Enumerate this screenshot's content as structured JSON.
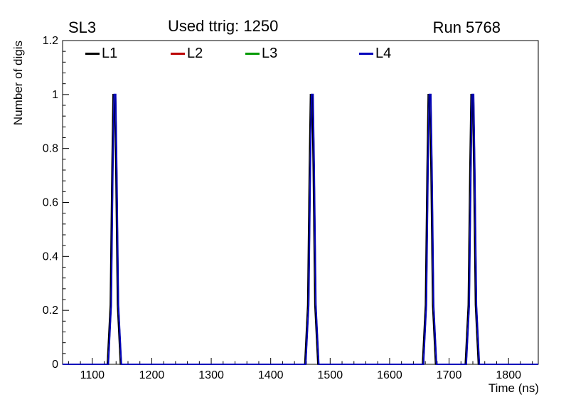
{
  "chart_data": {
    "type": "line",
    "title": "Used ttrig: 1250",
    "corner_labels": {
      "top_left": "SL3",
      "top_right": "Run 5768"
    },
    "xlabel": "Time (ns)",
    "ylabel": "Number of digis",
    "xlim": [
      1050,
      1850
    ],
    "ylim": [
      0,
      1.2
    ],
    "xticks": [
      1100,
      1200,
      1300,
      1400,
      1500,
      1600,
      1700,
      1800
    ],
    "yticks": [
      0,
      0.2,
      0.4,
      0.6,
      0.8,
      1,
      1.2
    ],
    "ytick_labels": [
      "0",
      "0.2",
      "0.4",
      "0.6",
      "0.8",
      "1",
      "1.2"
    ],
    "x_minor_step": 20,
    "y_minor_step": 0.04,
    "grid": false,
    "frame_color": "#000000",
    "legend": {
      "position": "top-inside",
      "entries": [
        {
          "label": "L1",
          "color": "#000000"
        },
        {
          "label": "L2",
          "color": "#bb0000"
        },
        {
          "label": "L3",
          "color": "#009900"
        },
        {
          "label": "L4",
          "color": "#0000bb"
        }
      ]
    },
    "series": [
      {
        "name": "L1",
        "color": "#000000",
        "baseline": 0,
        "line_width": 1.5,
        "peaks": [
          {
            "center": 1136,
            "half_width": 11,
            "height": 1
          },
          {
            "center": 1468,
            "half_width": 11,
            "height": 1
          },
          {
            "center": 1666,
            "half_width": 11,
            "height": 1
          },
          {
            "center": 1738,
            "half_width": 11,
            "height": 1
          }
        ]
      },
      {
        "name": "L2",
        "color": "#bb0000",
        "baseline": 0,
        "line_width": 1.5,
        "peaks": [
          {
            "center": 1138,
            "half_width": 11,
            "height": 1
          },
          {
            "center": 1470,
            "half_width": 11,
            "height": 1
          },
          {
            "center": 1668,
            "half_width": 11,
            "height": 1
          },
          {
            "center": 1740,
            "half_width": 11,
            "height": 1
          }
        ]
      },
      {
        "name": "L3",
        "color": "#009900",
        "baseline": 0,
        "line_width": 1.5,
        "peaks": [
          {
            "center": 1138,
            "half_width": 11,
            "height": 1
          },
          {
            "center": 1470,
            "half_width": 11,
            "height": 1
          },
          {
            "center": 1668,
            "half_width": 11,
            "height": 1
          },
          {
            "center": 1740,
            "half_width": 11,
            "height": 1
          }
        ]
      },
      {
        "name": "L4",
        "color": "#0000bb",
        "baseline": 0,
        "line_width": 2,
        "peaks": [
          {
            "center": 1138,
            "half_width": 11,
            "height": 1
          },
          {
            "center": 1470,
            "half_width": 11,
            "height": 1
          },
          {
            "center": 1668,
            "half_width": 11,
            "height": 1
          },
          {
            "center": 1740,
            "half_width": 11,
            "height": 1
          }
        ]
      }
    ]
  }
}
